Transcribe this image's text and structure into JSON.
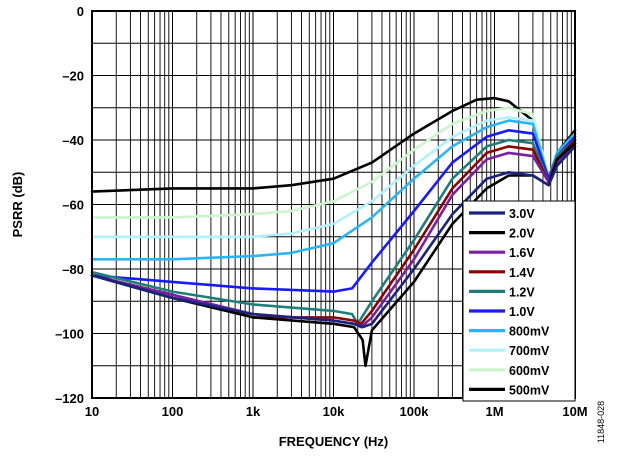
{
  "figure_id": "11848-028",
  "chart_data": {
    "type": "line",
    "title": "",
    "xlabel": "FREQUENCY (Hz)",
    "ylabel": "PSRR (dB)",
    "x_scale": "log",
    "xlim": [
      10,
      10000000
    ],
    "ylim": [
      -120,
      0
    ],
    "x_ticks": [
      10,
      100,
      1000,
      10000,
      100000,
      1000000,
      10000000
    ],
    "x_tick_labels": [
      "10",
      "100",
      "1k",
      "10k",
      "100k",
      "1M",
      "10M"
    ],
    "y_ticks": [
      0,
      -20,
      -40,
      -60,
      -80,
      -100,
      -120
    ],
    "y_tick_labels": [
      "0",
      "–20",
      "–40",
      "–60",
      "–80",
      "–100",
      "–120"
    ],
    "grid": true,
    "legend_position": "bottom-right",
    "series": [
      {
        "name": "3.0V",
        "color": "#1a237e",
        "x": [
          10,
          100,
          1000,
          10000,
          18000,
          23000,
          30000,
          100000,
          300000,
          800000,
          1500000,
          3000000,
          4700000,
          6000000,
          10000000
        ],
        "y": [
          -82,
          -89,
          -94,
          -96,
          -97,
          -98,
          -97,
          -80,
          -63,
          -52,
          -50,
          -51,
          -54,
          -48,
          -42
        ]
      },
      {
        "name": "2.0V",
        "color": "#000000",
        "x": [
          10,
          100,
          1000,
          10000,
          18000,
          23000,
          25000,
          30000,
          100000,
          300000,
          800000,
          1500000,
          3000000,
          4700000,
          6000000,
          10000000
        ],
        "y": [
          -82,
          -89,
          -95,
          -97,
          -98,
          -102,
          -110,
          -99,
          -84,
          -66,
          -55,
          -51,
          -51,
          -54,
          -46,
          -41
        ]
      },
      {
        "name": "1.6V",
        "color": "#7b1fa2",
        "x": [
          10,
          100,
          1000,
          10000,
          18000,
          22000,
          30000,
          100000,
          300000,
          800000,
          1500000,
          3000000,
          4700000,
          6000000,
          10000000
        ],
        "y": [
          -82,
          -88,
          -94,
          -96,
          -97,
          -98,
          -95,
          -77,
          -57,
          -46,
          -44,
          -45,
          -53,
          -47,
          -41
        ]
      },
      {
        "name": "1.4V",
        "color": "#8b0000",
        "x": [
          10,
          100,
          1000,
          10000,
          18000,
          22000,
          30000,
          100000,
          300000,
          800000,
          1500000,
          3000000,
          4700000,
          6000000,
          10000000
        ],
        "y": [
          -82,
          -88,
          -95,
          -95,
          -96,
          -97,
          -93,
          -74,
          -55,
          -44,
          -42,
          -43,
          -53,
          -46,
          -40
        ]
      },
      {
        "name": "1.2V",
        "color": "#1e7f7a",
        "x": [
          10,
          100,
          1000,
          10000,
          17000,
          20000,
          30000,
          100000,
          300000,
          800000,
          1500000,
          3000000,
          4700000,
          6000000,
          10000000
        ],
        "y": [
          -81,
          -87,
          -91,
          -93,
          -94,
          -97,
          -90,
          -71,
          -52,
          -42,
          -40,
          -41,
          -53,
          -45,
          -40
        ]
      },
      {
        "name": "1.0V",
        "color": "#1a1aff",
        "x": [
          10,
          100,
          1000,
          10000,
          17000,
          30000,
          100000,
          300000,
          800000,
          1500000,
          3000000,
          4700000,
          6000000,
          10000000
        ],
        "y": [
          -82,
          -84,
          -86,
          -87,
          -86,
          -78,
          -62,
          -47,
          -39,
          -37,
          -38,
          -52,
          -45,
          -39
        ]
      },
      {
        "name": "800mV",
        "color": "#29b6f6",
        "x": [
          10,
          100,
          1000,
          3000,
          10000,
          30000,
          100000,
          300000,
          800000,
          1500000,
          3000000,
          4700000,
          6000000,
          10000000
        ],
        "y": [
          -77,
          -77,
          -76,
          -75,
          -72,
          -64,
          -52,
          -42,
          -36,
          -34,
          -35,
          -52,
          -44,
          -38
        ]
      },
      {
        "name": "700mV",
        "color": "#b3f0ff",
        "x": [
          10,
          100,
          1000,
          3000,
          10000,
          30000,
          100000,
          300000,
          800000,
          1500000,
          3000000,
          4700000,
          6000000,
          10000000
        ],
        "y": [
          -70,
          -70,
          -70,
          -69,
          -66,
          -59,
          -48,
          -39,
          -34,
          -33,
          -34,
          -52,
          -44,
          -38
        ]
      },
      {
        "name": "600mV",
        "color": "#ccf5cc",
        "x": [
          10,
          100,
          1000,
          3000,
          10000,
          30000,
          100000,
          300000,
          800000,
          1500000,
          3000000,
          4700000,
          6000000,
          10000000
        ],
        "y": [
          -64,
          -64,
          -63,
          -62,
          -59,
          -53,
          -43,
          -35,
          -31,
          -30,
          -32,
          -52,
          -44,
          -38
        ]
      },
      {
        "name": "500mV",
        "color": "#000000",
        "x": [
          10,
          100,
          1000,
          3000,
          10000,
          30000,
          100000,
          300000,
          600000,
          1000000,
          1500000,
          3000000,
          4700000,
          6000000,
          10000000
        ],
        "y": [
          -56,
          -55,
          -55,
          -54,
          -52,
          -47,
          -38,
          -31,
          -27.5,
          -27,
          -28,
          -34,
          -52,
          -44,
          -37
        ]
      }
    ]
  }
}
